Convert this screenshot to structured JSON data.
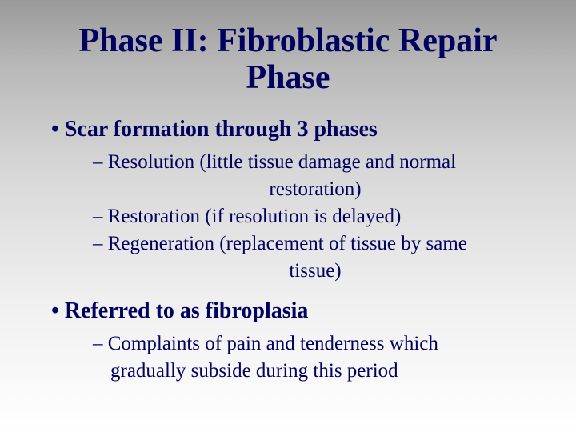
{
  "colors": {
    "text": "#000060",
    "bg_top": "#9a9a9a",
    "bg_bottom": "#ffffff"
  },
  "fonts": {
    "family": "Times New Roman",
    "title_size_pt": 42,
    "bullet1_size_pt": 28,
    "bullet2_size_pt": 25
  },
  "title": "Phase II: Fibroblastic Repair Phase",
  "bullets": [
    {
      "text": "Scar formation through 3 phases",
      "sub": [
        {
          "line1": "– Resolution (little tissue damage and normal",
          "line2": "restoration)"
        },
        {
          "line1": "– Restoration (if resolution is delayed)",
          "line2": ""
        },
        {
          "line1": "– Regeneration (replacement of tissue by same",
          "line2": "tissue)"
        }
      ]
    },
    {
      "text": "Referred to as fibroplasia",
      "sub": [
        {
          "line1": "– Complaints of pain and tenderness which",
          "line2cont": "gradually subside during this period"
        }
      ]
    }
  ]
}
